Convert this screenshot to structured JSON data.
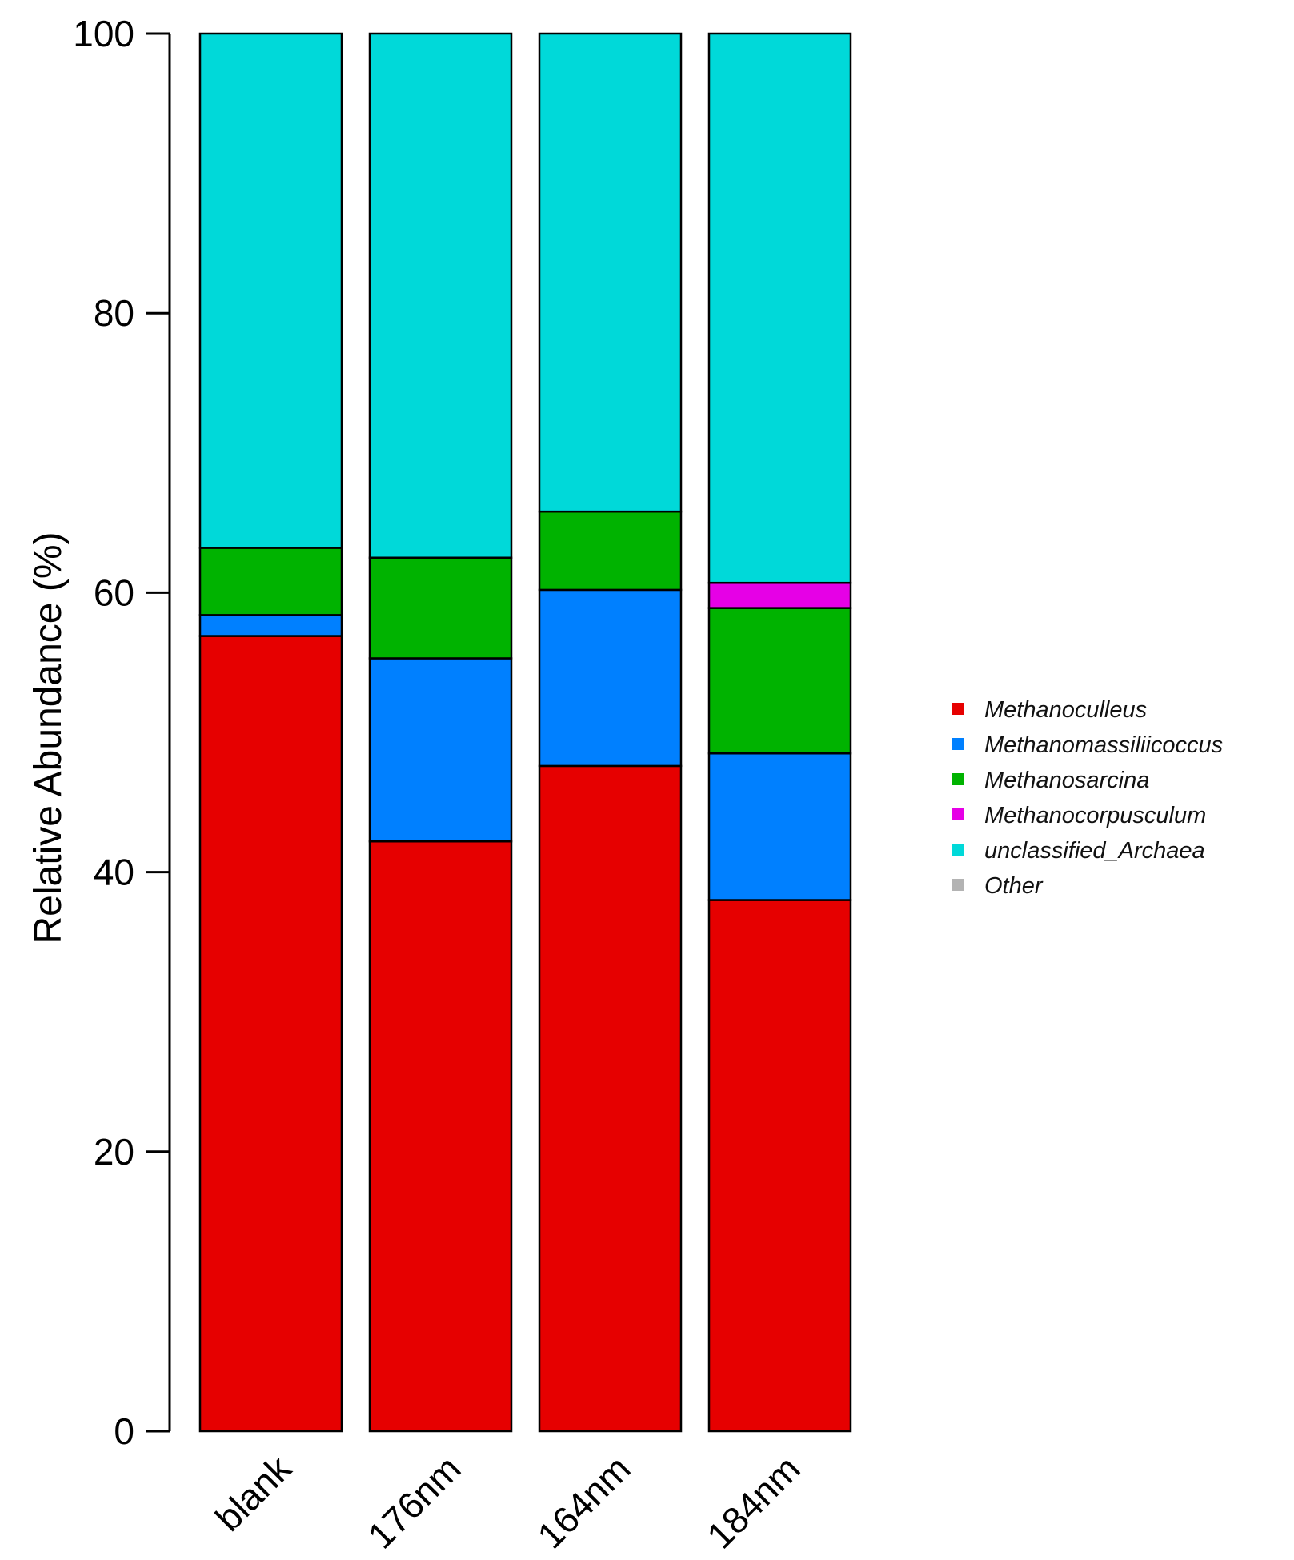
{
  "chart_data": {
    "type": "bar",
    "stacked": true,
    "title": "",
    "xlabel": "",
    "ylabel": "Relative Abundance (%)",
    "ylim": [
      0,
      100
    ],
    "yticks": [
      0,
      20,
      40,
      60,
      80,
      100
    ],
    "grid": false,
    "legend_position": "right",
    "categories": [
      "blank",
      "176nm",
      "164nm",
      "184nm"
    ],
    "series": [
      {
        "name": "Methanoculleus",
        "color": "#e60000",
        "values": [
          56.9,
          42.2,
          47.6,
          38.0
        ]
      },
      {
        "name": "Methanomassiliicoccus",
        "color": "#0080ff",
        "values": [
          1.5,
          13.1,
          12.6,
          10.5
        ]
      },
      {
        "name": "Methanosarcina",
        "color": "#00b300",
        "values": [
          4.8,
          7.2,
          5.6,
          10.4
        ]
      },
      {
        "name": "Methanocorpusculum",
        "color": "#e600e6",
        "values": [
          0,
          0,
          0,
          1.8
        ]
      },
      {
        "name": "unclassified_Archaea",
        "color": "#00d9d9",
        "values": [
          36.8,
          37.5,
          34.2,
          39.3
        ]
      },
      {
        "name": "Other",
        "color": "#b3b3b3",
        "values": [
          0,
          0,
          0,
          0
        ]
      }
    ]
  }
}
